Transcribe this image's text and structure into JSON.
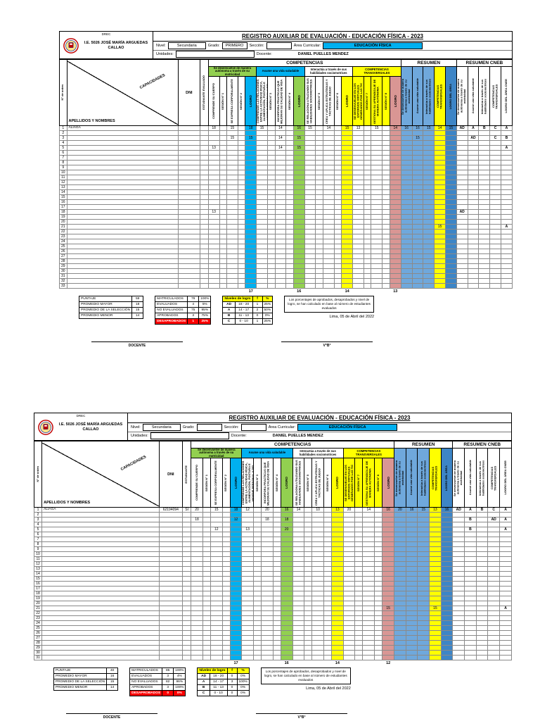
{
  "colors": {
    "green": "#92D050",
    "cyan": "#00B0F0",
    "yellow": "#FFFF00",
    "pink": "#D99694",
    "lightblue": "#6FA8DC",
    "blue": "#3D85C6",
    "red": "#FF0000",
    "white": "#FFFFFF"
  },
  "table": {
    "competencias_title": "COMPETENCIAS",
    "left": {
      "orden": "N° de orden",
      "capacidades": "CAPACIDADES",
      "apellidos": "APELLIDOS Y NOMBRES",
      "dni": "DNI"
    },
    "groups": [
      {
        "title": "Se desenvuelve de manera autónoma a través de su motricidad",
        "title_bg": "green",
        "cols": [
          {
            "k": "c1",
            "label": "COMPRENDE SU CUERPO"
          },
          {
            "k": "c1s",
            "label": "SESIÓN N° 1",
            "small": true
          },
          {
            "k": "c2",
            "label": "SE EXPRESA CORPORALMENTE"
          },
          {
            "k": "c2s",
            "label": "SESIÓN N° 2",
            "small": true
          }
        ],
        "logro": {
          "k": "l1",
          "label": "LOGRO",
          "bg": "cyan"
        }
      },
      {
        "title": "Asume una vida saludable",
        "title_bg": "cyan",
        "cols": [
          {
            "k": "c3",
            "label": "COMPRENDE LAS RELACIONES ENTRE LA ACTIVIDAD FÍSICA, ALIMENTACIÓN, POSTURA E HIGIENE PERSONAL Y DEL AMBIENTE, Y LA SALUD"
          },
          {
            "k": "c3s",
            "label": "SESIÓN N° 3",
            "small": true
          },
          {
            "k": "c4",
            "label": "INCORPORA PRÁCTICAS QUE MEJORAN SU CALIDAD DE VIDA"
          },
          {
            "k": "c4s",
            "label": "SESIÓN N° 4",
            "small": true
          }
        ],
        "logro": {
          "k": "l2",
          "label": "LOGRO",
          "bg": "green"
        }
      },
      {
        "title": "Interactúa a través de sus habilidades sociomotrices",
        "title_bg": "white",
        "cols": [
          {
            "k": "c5",
            "label": "SE RELACIONA UTILIZANDO SUS HABILIDADES SOCIOMOTRICES"
          },
          {
            "k": "c5s",
            "label": "SESIÓN N° 5",
            "small": true
          },
          {
            "k": "c6",
            "label": "CREA Y APLICA ESTRATEGIAS Y TÁCTICAS DE JUEGO"
          },
          {
            "k": "c6s",
            "label": "SESIÓN N° 6",
            "small": true
          }
        ],
        "logro": {
          "k": "l3",
          "label": "LOGRO",
          "bg": "yellow"
        }
      },
      {
        "title": "COMPETENCIAS TRANSVERSALES",
        "title_bg": "yellow",
        "cols": [
          {
            "k": "c7",
            "label": "SE DESENVUELVE EN LOS ENTORNOS VIRTUALES GENERADOS POR LAS TIC",
            "bg": "yellow"
          },
          {
            "k": "c7s",
            "label": "SESIÓN N° 7",
            "small": true,
            "bg": "yellow"
          },
          {
            "k": "c8",
            "label": "GESTIONA SU APRENDIZAJE DE MANERA AUTÓNOMA",
            "bg": "yellow"
          },
          {
            "k": "c8s",
            "label": "SESIÓN N° 8",
            "small": true,
            "bg": "yellow"
          }
        ],
        "logro": {
          "k": "l4",
          "label": "LOGRO",
          "bg": "pink"
        }
      }
    ],
    "resumen": {
      "title": "RESUMEN",
      "cols": [
        {
          "k": "r1",
          "label": "Se desenvuelve de manera autónoma a través de su motricidad",
          "bg": "lightblue"
        },
        {
          "k": "r2",
          "label": "Asume una vida saludable",
          "bg": "lightblue"
        },
        {
          "k": "r3",
          "label": "Interactúa a través de sus habilidades sociomotrices",
          "bg": "lightblue"
        },
        {
          "k": "r4",
          "label": "COMPETENCIAS TRANSVERSALES",
          "bg": "yellow"
        },
        {
          "k": "r5",
          "label": "LOGRO DEL ÁREA",
          "bg": "blue"
        }
      ]
    },
    "cneb": {
      "title": "RESUMEN CNEB",
      "cols": [
        {
          "k": "k1",
          "label": "Se desenvuelve de manera autónoma a través de su motricidad"
        },
        {
          "k": "k2",
          "label": "Asume una vida saludable"
        },
        {
          "k": "k3",
          "label": "Interactúa a través de sus habilidades sociomotrices"
        },
        {
          "k": "k4",
          "label": "COMPETENCIAS TRANSVERSALES"
        },
        {
          "k": "k5",
          "label": "LOGRO DEL ÁREA CNEB"
        }
      ]
    }
  },
  "registers": [
    {
      "header": {
        "drec": "DREC",
        "school1": "I.E. 5026 JOSÉ MARÍA ARGUEDAS",
        "school2": "CALLAO",
        "title": "REGISTRO AUXILIAR DE EVALUACIÓN  - EDUCACIÓN FÍSICA - 2023",
        "nivel_label": "Nivel:",
        "nivel": "Secundaria",
        "grado_label": "Grado:",
        "grado": "PRIMERO",
        "seccion_label": "Sección:",
        "seccion": "",
        "area_label": "Área Curricular:",
        "area": "EDUCACIÓN FÍSICA",
        "unidades_label": "Unidades:",
        "unidades": "",
        "docente_label": "Docente:",
        "docente": "DANIEL PUELLES MENDEZ"
      },
      "estudiante_col": "ESTUDIANTE EVALUADO",
      "row_count": 33,
      "rows": [
        {
          "n": 1,
          "name": "ALIAGA",
          "dni": "",
          "est": "",
          "v": {
            "c1": "18",
            "c2": "15",
            "l1": "18",
            "c3": "15",
            "c4": "14",
            "l2": "16",
            "c5": "15",
            "c6": "14",
            "l3": "15",
            "c7": "13",
            "c8": "15",
            "l4": "14",
            "r1": "16",
            "r2": "16",
            "r3": "15",
            "r4": "14",
            "r5": "15",
            "k1": "AD",
            "k2": "A",
            "k3": "B",
            "k4": "C",
            "k5": "A"
          }
        },
        {
          "n": 3,
          "v": {
            "c2": "15",
            "l1": "15",
            "c4": "14",
            "l2": "15",
            "r2": "15",
            "k2": "AD",
            "k4": "C",
            "k5": "B"
          }
        },
        {
          "n": 5,
          "v": {
            "c1": "13",
            "c4": "14",
            "l2": "15",
            "k5": "A"
          }
        },
        {
          "n": 18,
          "v": {
            "c1": "13",
            "k1": "AD"
          }
        },
        {
          "n": 21,
          "v": {
            "r4": "15",
            "k5": "A"
          }
        }
      ],
      "footer_nums": {
        "l1": "17",
        "l2": "16",
        "l3": "14",
        "l4": "13"
      },
      "summary": {
        "left_rows": [
          [
            "PUNTAJE",
            "59"
          ],
          [
            "PROMEDIO MAYOR",
            "18"
          ],
          [
            "PROMEDIO DE LA SELECCIÓN",
            "15"
          ],
          [
            "PROMEDIO MENOR",
            "14"
          ]
        ],
        "center_rows": [
          [
            "MATRICULADOS",
            "79",
            "100%"
          ],
          [
            "EVALUADOS",
            "4",
            "5%"
          ],
          [
            "NO EVALUADOS",
            "75",
            "95%"
          ],
          [
            "APROBADOS",
            "3",
            "75%"
          ],
          [
            "DESAPROBADOS",
            "1",
            "25%"
          ]
        ],
        "niveles": {
          "title": "Niveles de logro",
          "col_f": "f",
          "col_pct": "%",
          "rows": [
            [
              "AD",
              "18 - 20",
              "1",
              "25%"
            ],
            [
              "A",
              "14 - 17",
              "2",
              "50%"
            ],
            [
              "B",
              "11 - 13",
              "0",
              "0%"
            ],
            [
              "C",
              "0 - 10",
              "1",
              "25%"
            ]
          ]
        },
        "note": "Los porcentajes de aprobados, desaprobados y nivel de logro, se han calculado en base al número de estudiantes evaluados",
        "date": "Lima, 05 de Abril del    2022"
      },
      "signatures": [
        "DOCENTE",
        "V°B°"
      ]
    },
    {
      "header": {
        "drec": "DREC",
        "school1": "I.E. 5026 JOSÉ MARÍA ARGUEDAS",
        "school2": "CALLAO",
        "title": "REGISTRO AUXILIAR DE EVALUACIÓN - EDUCACIÓN FÍSICA - 2023",
        "nivel_label": "Nivel:",
        "nivel": "Secundaria",
        "grado_label": "Grado:",
        "grado": "",
        "seccion_label": "Sección:",
        "seccion": "",
        "area_label": "Área Curricular:",
        "area": "EDUCACIÓN FÍSICA",
        "unidades_label": "Unidades:",
        "unidades": "",
        "docente_label": "Docente:",
        "docente": "DANIEL PUELLES MENDEZ"
      },
      "estudiante_col": "ESTUDIANTE",
      "row_count": 31,
      "rows": [
        {
          "n": 1,
          "name": "ALIAGA",
          "dni": "62194094",
          "est": "SI",
          "v": {
            "c1": "20",
            "c2": "15",
            "l1": "18",
            "c3": "12",
            "c4": "20",
            "l2": "16",
            "c5": "14",
            "c6": "10",
            "l3": "13",
            "c7": "20",
            "c8": "14",
            "l4": "16",
            "r1": "20",
            "r2": "16",
            "r3": "15",
            "r4": "13",
            "r5": "16",
            "k1": "AD",
            "k2": "A",
            "k3": "B",
            "k4": "C",
            "k5": "A"
          }
        },
        {
          "n": 3,
          "v": {
            "c1": "18",
            "l1": "12",
            "c4": "18",
            "l2": "18",
            "k2": "B",
            "k4": "AD",
            "k5": "A"
          }
        },
        {
          "n": 5,
          "v": {
            "c2": "12",
            "c3": "13",
            "l2": "20",
            "k2": "B",
            "k5": "A"
          }
        },
        {
          "n": 21,
          "v": {
            "l4": "15",
            "r4": "15",
            "k5": "A"
          }
        }
      ],
      "footer_nums": {
        "l1": "17",
        "l2": "16",
        "l3": "14",
        "l4": "12"
      },
      "summary": {
        "left_rows": [
          [
            "PUNTAJE",
            "40"
          ],
          [
            "PROMEDIO MAYOR",
            "16"
          ],
          [
            "PROMEDIO DE LA SELECCIÓN",
            "15"
          ],
          [
            "PROMEDIO MENOR",
            "14"
          ]
        ],
        "center_rows": [
          [
            "MATRICULADOS",
            "85",
            "100%"
          ],
          [
            "EVALUADOS",
            "3",
            "4%"
          ],
          [
            "NO EVALUADOS",
            "82",
            "96%"
          ],
          [
            "APROBADOS",
            "3",
            "100%"
          ],
          [
            "DESAPROBADOS",
            "0",
            "0%"
          ]
        ],
        "niveles": {
          "title": "Niveles de logro",
          "col_f": "f",
          "col_pct": "%",
          "rows": [
            [
              "AD",
              "18 - 20",
              "0",
              "0%"
            ],
            [
              "A",
              "14 - 17",
              "3",
              "100%"
            ],
            [
              "B",
              "11 - 13",
              "0",
              "0%"
            ],
            [
              "C",
              "0 - 10",
              "0",
              "0%"
            ]
          ]
        },
        "note": "Los porcentajes de aprobados, desaprobados y nivel de logro, se han calculado en base al número de estudiantes evaluados",
        "date": "Lima, 05 de Abril del    2022"
      },
      "signatures": [
        "DOCENTE",
        "V°B°"
      ]
    }
  ]
}
